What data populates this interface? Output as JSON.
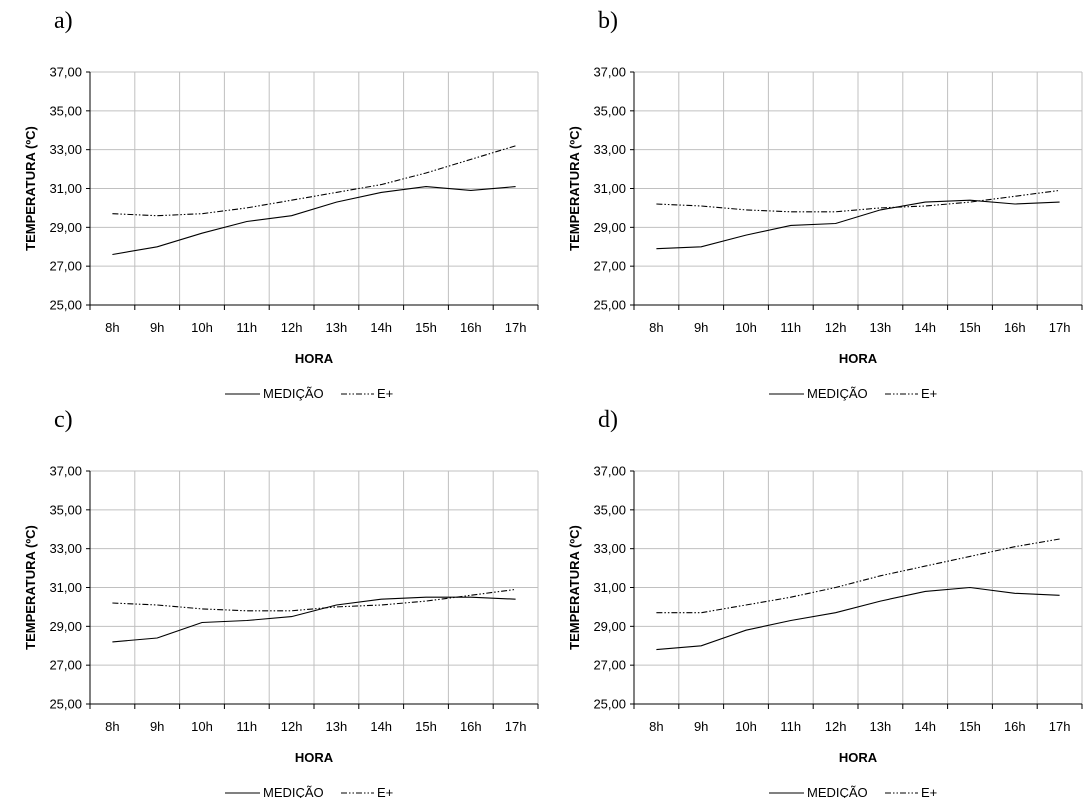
{
  "chart_data": [
    {
      "panel_label": "a)",
      "type": "line",
      "xlabel": "HORA",
      "ylabel": "TEMPERATURA (ºC)",
      "categories": [
        "8h",
        "9h",
        "10h",
        "11h",
        "12h",
        "13h",
        "14h",
        "15h",
        "16h",
        "17h"
      ],
      "y_ticks": [
        "25,00",
        "27,00",
        "29,00",
        "31,00",
        "33,00",
        "35,00",
        "37,00"
      ],
      "ylim": [
        25,
        37
      ],
      "grid": true,
      "legend_position": "bottom",
      "series": [
        {
          "name": "MEDIÇÃO",
          "style": "solid",
          "values": [
            27.6,
            28.0,
            28.7,
            29.3,
            29.6,
            30.3,
            30.8,
            31.1,
            30.9,
            31.1
          ]
        },
        {
          "name": "E+",
          "style": "dash-dot-dot",
          "values": [
            29.7,
            29.6,
            29.7,
            30.0,
            30.4,
            30.8,
            31.2,
            31.8,
            32.5,
            33.2
          ]
        }
      ]
    },
    {
      "panel_label": "b)",
      "type": "line",
      "xlabel": "HORA",
      "ylabel": "TEMPERATURA (ºC)",
      "categories": [
        "8h",
        "9h",
        "10h",
        "11h",
        "12h",
        "13h",
        "14h",
        "15h",
        "16h",
        "17h"
      ],
      "y_ticks": [
        "25,00",
        "27,00",
        "29,00",
        "31,00",
        "33,00",
        "35,00",
        "37,00"
      ],
      "ylim": [
        25,
        37
      ],
      "grid": true,
      "legend_position": "bottom",
      "series": [
        {
          "name": "MEDIÇÃO",
          "style": "solid",
          "values": [
            27.9,
            28.0,
            28.6,
            29.1,
            29.2,
            29.9,
            30.3,
            30.4,
            30.2,
            30.3
          ]
        },
        {
          "name": "E+",
          "style": "dash-dot-dot",
          "values": [
            30.2,
            30.1,
            29.9,
            29.8,
            29.8,
            30.0,
            30.1,
            30.3,
            30.6,
            30.9
          ]
        }
      ]
    },
    {
      "panel_label": "c)",
      "type": "line",
      "xlabel": "HORA",
      "ylabel": "TEMPERATURA (ºC)",
      "categories": [
        "8h",
        "9h",
        "10h",
        "11h",
        "12h",
        "13h",
        "14h",
        "15h",
        "16h",
        "17h"
      ],
      "y_ticks": [
        "25,00",
        "27,00",
        "29,00",
        "31,00",
        "33,00",
        "35,00",
        "37,00"
      ],
      "ylim": [
        25,
        37
      ],
      "grid": true,
      "legend_position": "bottom",
      "series": [
        {
          "name": "MEDIÇÃO",
          "style": "solid",
          "values": [
            28.2,
            28.4,
            29.2,
            29.3,
            29.5,
            30.1,
            30.4,
            30.5,
            30.5,
            30.4
          ]
        },
        {
          "name": "E+",
          "style": "dash-dot-dot",
          "values": [
            30.2,
            30.1,
            29.9,
            29.8,
            29.8,
            30.0,
            30.1,
            30.3,
            30.6,
            30.9
          ]
        }
      ]
    },
    {
      "panel_label": "d)",
      "type": "line",
      "xlabel": "HORA",
      "ylabel": "TEMPERATURA (ºC)",
      "categories": [
        "8h",
        "9h",
        "10h",
        "11h",
        "12h",
        "13h",
        "14h",
        "15h",
        "16h",
        "17h"
      ],
      "y_ticks": [
        "25,00",
        "27,00",
        "29,00",
        "31,00",
        "33,00",
        "35,00",
        "37,00"
      ],
      "ylim": [
        25,
        37
      ],
      "grid": true,
      "legend_position": "bottom",
      "series": [
        {
          "name": "MEDIÇÃO",
          "style": "solid",
          "values": [
            27.8,
            28.0,
            28.8,
            29.3,
            29.7,
            30.3,
            30.8,
            31.0,
            30.7,
            30.6
          ]
        },
        {
          "name": "E+",
          "style": "dash-dot-dot",
          "values": [
            29.7,
            29.7,
            30.1,
            30.5,
            31.0,
            31.6,
            32.1,
            32.6,
            33.1,
            33.5
          ]
        }
      ]
    }
  ]
}
